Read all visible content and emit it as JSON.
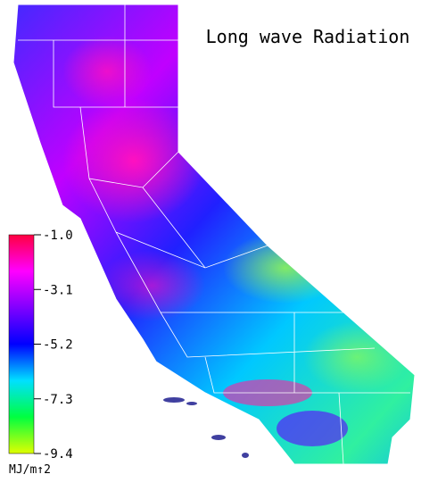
{
  "title": "Long wave Radiation",
  "colorbar": {
    "range": [
      -9.4,
      -1.0
    ],
    "ticks": [
      {
        "value": -1.0,
        "label": "-1.0"
      },
      {
        "value": -3.1,
        "label": "-3.1"
      },
      {
        "value": -5.2,
        "label": "-5.2"
      },
      {
        "value": -7.3,
        "label": "-7.3"
      },
      {
        "value": -9.4,
        "label": "-9.4"
      }
    ],
    "colors": [
      "#ff0040",
      "#ff00ff",
      "#8000ff",
      "#0000ff",
      "#00e0ff",
      "#00ff40",
      "#e0ff00"
    ],
    "unit": "MJ/m↑2"
  }
}
